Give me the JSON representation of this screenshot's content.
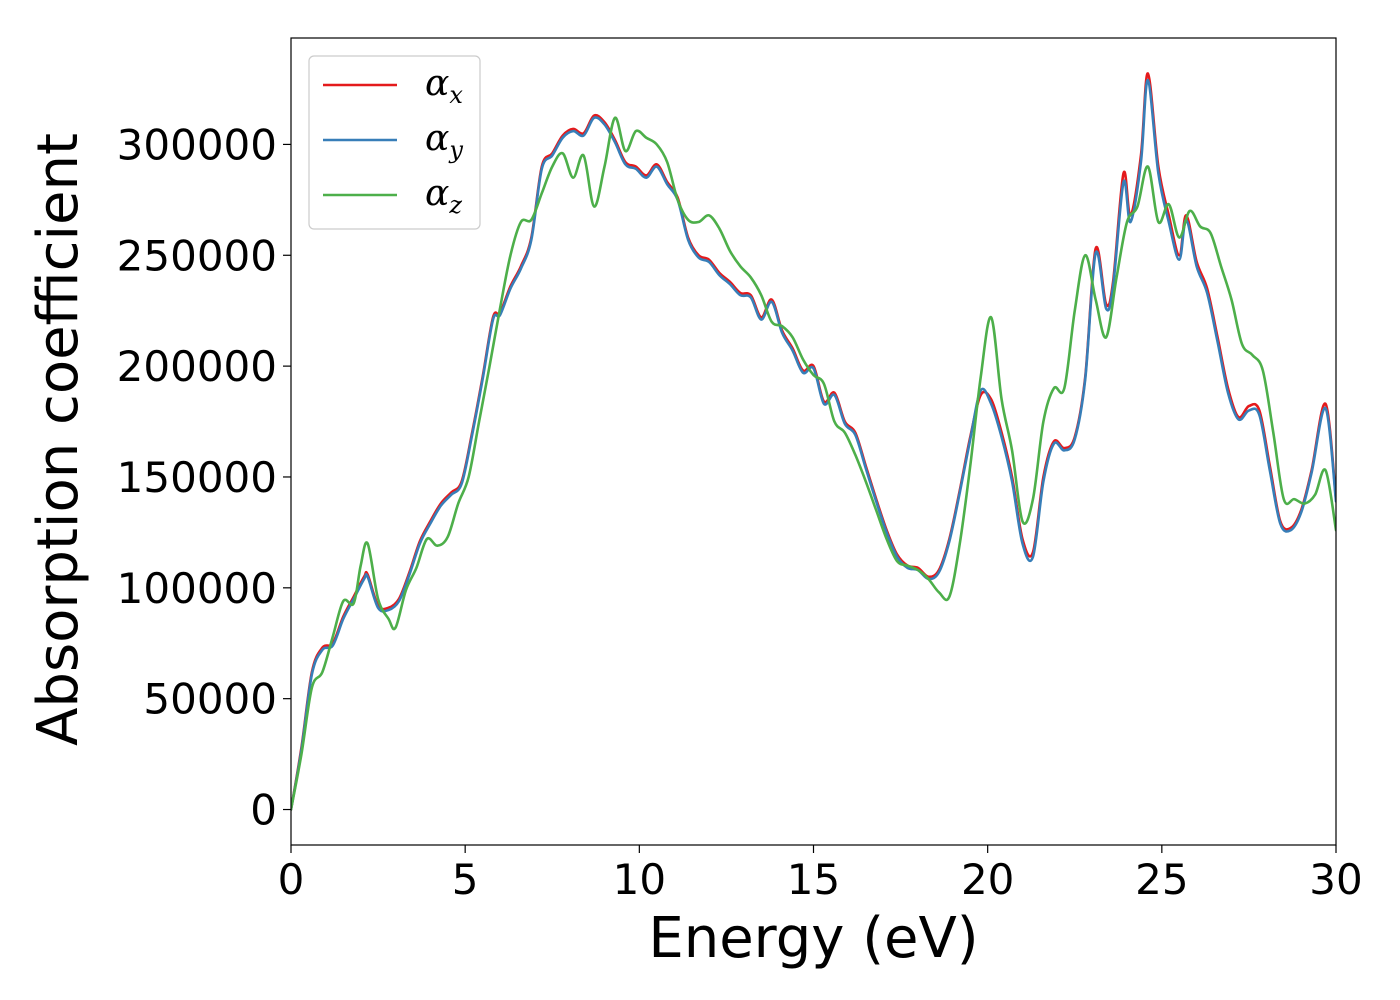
{
  "chart_data": {
    "type": "line",
    "xlabel": "Energy (eV)",
    "ylabel": "Absorption coefficient",
    "xlim": [
      0,
      30
    ],
    "ylim": [
      -16000,
      348000
    ],
    "xticks": [
      0,
      5,
      10,
      15,
      20,
      25,
      30
    ],
    "xtick_labels": [
      "0",
      "5",
      "10",
      "15",
      "20",
      "25",
      "30"
    ],
    "yticks": [
      0,
      50000,
      100000,
      150000,
      200000,
      250000,
      300000
    ],
    "ytick_labels": [
      "0",
      "50000",
      "100000",
      "150000",
      "200000",
      "250000",
      "300000"
    ],
    "grid": false,
    "legend_position": "top-left",
    "series": [
      {
        "name": "α",
        "subscript": "x",
        "color": "#e41a1c",
        "x": [
          0,
          0.3,
          0.6,
          0.9,
          1.2,
          1.5,
          1.8,
          2.1,
          2.2,
          2.5,
          2.8,
          3.1,
          3.4,
          3.7,
          4.0,
          4.3,
          4.6,
          4.9,
          5.2,
          5.5,
          5.8,
          6.0,
          6.3,
          6.6,
          6.9,
          7.2,
          7.5,
          7.8,
          8.1,
          8.4,
          8.7,
          9.0,
          9.3,
          9.6,
          9.9,
          10.2,
          10.5,
          10.8,
          11.1,
          11.4,
          11.7,
          12.0,
          12.3,
          12.6,
          12.9,
          13.2,
          13.5,
          13.8,
          14.1,
          14.4,
          14.7,
          15.0,
          15.3,
          15.6,
          15.9,
          16.2,
          16.5,
          16.8,
          17.1,
          17.4,
          17.7,
          18.0,
          18.3,
          18.6,
          18.9,
          19.2,
          19.5,
          19.8,
          20.1,
          20.4,
          20.7,
          21.0,
          21.3,
          21.6,
          21.9,
          22.2,
          22.5,
          22.8,
          23.1,
          23.4,
          23.6,
          23.9,
          24.1,
          24.4,
          24.6,
          24.9,
          25.2,
          25.5,
          25.7,
          26.0,
          26.3,
          26.6,
          26.9,
          27.2,
          27.5,
          27.8,
          28.1,
          28.4,
          28.7,
          29.0,
          29.3,
          29.7,
          30.0
        ],
        "y": [
          0,
          28000,
          62000,
          73000,
          75000,
          87000,
          96000,
          105000,
          106000,
          92000,
          91000,
          95000,
          107000,
          121000,
          130000,
          138000,
          143000,
          148000,
          170000,
          195000,
          222000,
          224000,
          236000,
          245000,
          258000,
          290000,
          296000,
          304000,
          307000,
          305000,
          313000,
          310000,
          302000,
          292000,
          290000,
          286000,
          291000,
          283000,
          276000,
          258000,
          250000,
          248000,
          242000,
          238000,
          233000,
          232000,
          222000,
          230000,
          216000,
          208000,
          198000,
          200000,
          184000,
          188000,
          175000,
          170000,
          155000,
          140000,
          126000,
          115000,
          110000,
          109000,
          105000,
          108000,
          122000,
          144000,
          168000,
          187000,
          185000,
          170000,
          150000,
          122000,
          116000,
          150000,
          166000,
          163000,
          168000,
          195000,
          253000,
          228000,
          238000,
          287000,
          268000,
          295000,
          332000,
          290000,
          268000,
          250000,
          268000,
          247000,
          235000,
          213000,
          190000,
          177000,
          182000,
          180000,
          155000,
          130000,
          127000,
          135000,
          153000,
          183000,
          140000
        ]
      },
      {
        "name": "α",
        "subscript": "y",
        "color": "#377eb8",
        "x": [
          0,
          0.3,
          0.6,
          0.9,
          1.2,
          1.5,
          1.8,
          2.1,
          2.2,
          2.5,
          2.8,
          3.1,
          3.4,
          3.7,
          4.0,
          4.3,
          4.6,
          4.9,
          5.2,
          5.5,
          5.8,
          6.0,
          6.3,
          6.6,
          6.9,
          7.2,
          7.5,
          7.8,
          8.1,
          8.4,
          8.7,
          9.0,
          9.3,
          9.6,
          9.9,
          10.2,
          10.5,
          10.8,
          11.1,
          11.4,
          11.7,
          12.0,
          12.3,
          12.6,
          12.9,
          13.2,
          13.5,
          13.8,
          14.1,
          14.4,
          14.7,
          15.0,
          15.3,
          15.6,
          15.9,
          16.2,
          16.5,
          16.8,
          17.1,
          17.4,
          17.7,
          18.0,
          18.3,
          18.6,
          18.9,
          19.2,
          19.5,
          19.8,
          20.1,
          20.4,
          20.7,
          21.0,
          21.3,
          21.6,
          21.9,
          22.2,
          22.5,
          22.8,
          23.1,
          23.4,
          23.6,
          23.9,
          24.1,
          24.4,
          24.6,
          24.9,
          25.2,
          25.5,
          25.7,
          26.0,
          26.3,
          26.6,
          26.9,
          27.2,
          27.5,
          27.8,
          28.1,
          28.4,
          28.7,
          29.0,
          29.3,
          29.7,
          30.0
        ],
        "y": [
          0,
          27000,
          61000,
          72000,
          74000,
          86000,
          95000,
          104000,
          105000,
          91000,
          90000,
          94000,
          106000,
          120000,
          129000,
          137000,
          142000,
          147000,
          169000,
          194000,
          221000,
          223000,
          235000,
          244000,
          257000,
          289000,
          295000,
          303000,
          306000,
          304000,
          312000,
          309000,
          301000,
          291000,
          289000,
          285000,
          290000,
          282000,
          275000,
          257000,
          249000,
          247000,
          241000,
          237000,
          232000,
          231000,
          221000,
          229000,
          215000,
          207000,
          197000,
          199000,
          183000,
          187000,
          174000,
          169000,
          154000,
          139000,
          125000,
          114000,
          109000,
          108000,
          104000,
          107000,
          121000,
          143000,
          167000,
          189000,
          183000,
          168000,
          148000,
          120000,
          114000,
          148000,
          165000,
          162000,
          167000,
          194000,
          251000,
          226000,
          236000,
          283000,
          265000,
          292000,
          329000,
          287000,
          265000,
          248000,
          266000,
          245000,
          233000,
          211000,
          188000,
          176000,
          180000,
          178000,
          153000,
          129000,
          126000,
          134000,
          152000,
          181000,
          139000
        ]
      },
      {
        "name": "α",
        "subscript": "z",
        "color": "#4daf4a",
        "x": [
          0,
          0.3,
          0.6,
          0.9,
          1.2,
          1.5,
          1.8,
          2.0,
          2.2,
          2.5,
          2.8,
          3.0,
          3.3,
          3.6,
          3.9,
          4.2,
          4.5,
          4.8,
          5.1,
          5.4,
          5.7,
          6.0,
          6.3,
          6.6,
          6.9,
          7.2,
          7.5,
          7.8,
          8.1,
          8.4,
          8.7,
          9.0,
          9.3,
          9.6,
          9.9,
          10.2,
          10.5,
          10.8,
          11.1,
          11.4,
          11.7,
          12.0,
          12.3,
          12.6,
          12.9,
          13.2,
          13.5,
          13.8,
          14.1,
          14.4,
          14.7,
          15.0,
          15.3,
          15.6,
          15.9,
          16.2,
          16.5,
          16.8,
          17.1,
          17.4,
          17.7,
          18.0,
          18.3,
          18.6,
          18.9,
          19.2,
          19.5,
          19.8,
          20.1,
          20.4,
          20.7,
          21.0,
          21.3,
          21.6,
          21.9,
          22.2,
          22.5,
          22.8,
          23.1,
          23.4,
          23.7,
          24.0,
          24.3,
          24.6,
          24.9,
          25.2,
          25.5,
          25.8,
          26.1,
          26.4,
          26.7,
          27.0,
          27.3,
          27.6,
          27.9,
          28.2,
          28.5,
          28.8,
          29.1,
          29.4,
          29.7,
          30.0
        ],
        "y": [
          0,
          25000,
          55000,
          62000,
          78000,
          94000,
          93000,
          110000,
          120000,
          95000,
          86000,
          82000,
          99000,
          109000,
          122000,
          119000,
          123000,
          138000,
          150000,
          175000,
          200000,
          226000,
          250000,
          265000,
          266000,
          278000,
          290000,
          296000,
          285000,
          295000,
          272000,
          290000,
          312000,
          297000,
          306000,
          303000,
          300000,
          292000,
          275000,
          266000,
          265000,
          268000,
          262000,
          252000,
          245000,
          240000,
          232000,
          220000,
          218000,
          213000,
          203000,
          196000,
          192000,
          175000,
          170000,
          160000,
          148000,
          135000,
          122000,
          112000,
          110000,
          108000,
          104000,
          98000,
          96000,
          120000,
          155000,
          195000,
          222000,
          185000,
          162000,
          130000,
          140000,
          175000,
          190000,
          190000,
          225000,
          250000,
          230000,
          213000,
          240000,
          265000,
          272000,
          290000,
          265000,
          273000,
          258000,
          270000,
          263000,
          260000,
          245000,
          230000,
          210000,
          205000,
          198000,
          170000,
          140000,
          140000,
          138000,
          142000,
          153000,
          126000
        ]
      }
    ]
  }
}
